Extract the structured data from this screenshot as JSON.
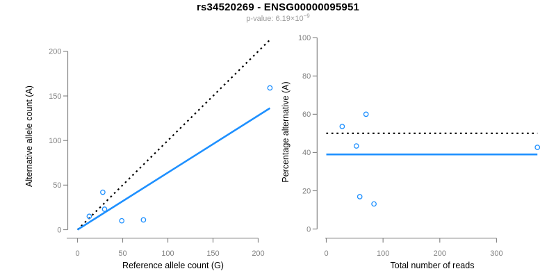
{
  "header": {
    "title": "rs34520269 - ENSG00000095951",
    "subtitle_prefix": "p-value: 6.19×10",
    "subtitle_exponent": "−9"
  },
  "colors": {
    "accent_blue": "#1E90FF",
    "line_black": "#000000",
    "axis_gray": "#888888",
    "tick_label_gray": "#808080",
    "subtitle_gray": "#9a9a9a"
  },
  "chart_data": [
    {
      "type": "scatter",
      "name": "allele-counts",
      "xlabel": "Reference allele count (G)",
      "ylabel": "Alternative allele count (A)",
      "xlim": [
        0,
        213
      ],
      "ylim": [
        0,
        213
      ],
      "xticks": [
        0,
        50,
        100,
        150,
        200
      ],
      "yticks": [
        0,
        50,
        100,
        150,
        200
      ],
      "grid": false,
      "legend": "none",
      "points": [
        {
          "x": 13,
          "y": 15
        },
        {
          "x": 28,
          "y": 42
        },
        {
          "x": 30,
          "y": 23
        },
        {
          "x": 49,
          "y": 10
        },
        {
          "x": 73,
          "y": 11
        },
        {
          "x": 213,
          "y": 159
        }
      ],
      "lines": [
        {
          "name": "identity-line",
          "style": "dotted",
          "color": "#000000",
          "from": {
            "x": 0,
            "y": 0
          },
          "to": {
            "x": 213,
            "y": 213
          }
        },
        {
          "name": "fit-line",
          "style": "solid",
          "color": "#1E90FF",
          "slope": 0.64,
          "from": {
            "x": 0,
            "y": 0
          },
          "to": {
            "x": 213,
            "y": 136.3
          }
        }
      ]
    },
    {
      "type": "scatter",
      "name": "percentage-alternative",
      "xlabel": "Total number of reads",
      "ylabel": "Percentage alternative (A)",
      "xlim": [
        0,
        372
      ],
      "ylim": [
        0,
        100
      ],
      "xticks": [
        0,
        100,
        200,
        300
      ],
      "yticks": [
        0,
        20,
        40,
        60,
        80,
        100
      ],
      "grid": false,
      "legend": "none",
      "points": [
        {
          "x": 28,
          "y": 53.6
        },
        {
          "x": 70,
          "y": 60.0
        },
        {
          "x": 53,
          "y": 43.4
        },
        {
          "x": 59,
          "y": 16.9
        },
        {
          "x": 84,
          "y": 13.1
        },
        {
          "x": 372,
          "y": 42.7
        }
      ],
      "lines": [
        {
          "name": "expected-50pct-line",
          "style": "dotted",
          "color": "#000000",
          "from": {
            "x": 0,
            "y": 50
          },
          "to": {
            "x": 372,
            "y": 50
          }
        },
        {
          "name": "mean-pct-line",
          "style": "solid",
          "color": "#1E90FF",
          "from": {
            "x": 0,
            "y": 39
          },
          "to": {
            "x": 372,
            "y": 39
          }
        }
      ]
    }
  ]
}
